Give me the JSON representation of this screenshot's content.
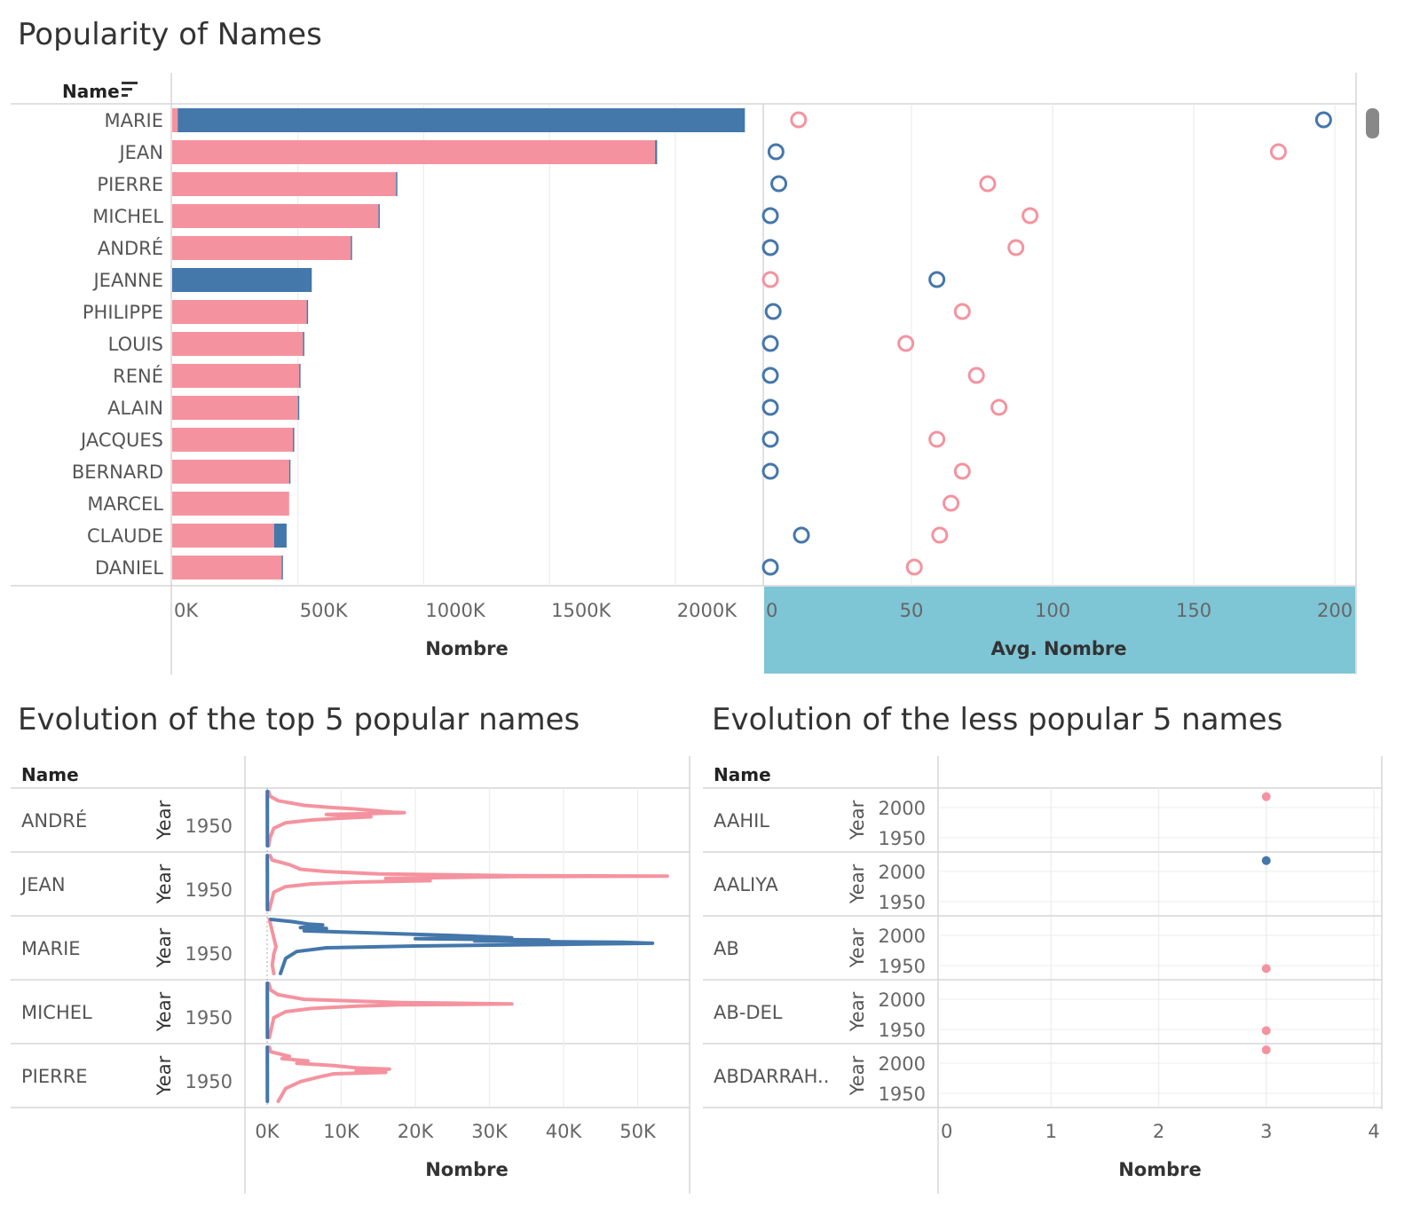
{
  "dashboard": {
    "title_top": "Popularity of Names",
    "title_bottom_left": "Evolution of the top 5 popular names",
    "title_bottom_right": "Evolution of the less popular 5 names"
  },
  "colors": {
    "female": "#4477aa",
    "male": "#f4939f",
    "highlight": "#7ec5d5",
    "grid": "#ececec"
  },
  "chart_data": [
    {
      "type": "bar",
      "header": "Name",
      "stacked": true,
      "categories": [
        "MARIE",
        "JEAN",
        "PIERRE",
        "MICHEL",
        "ANDRÉ",
        "JEANNE",
        "PHILIPPE",
        "LOUIS",
        "RENÉ",
        "ALAIN",
        "JACQUES",
        "BERNARD",
        "MARCEL",
        "CLAUDE",
        "DANIEL"
      ],
      "series": [
        {
          "color": "#f4939f",
          "values": [
            22000,
            1920000,
            890000,
            820000,
            710000,
            0,
            535000,
            520000,
            505000,
            500000,
            480000,
            465000,
            465000,
            405000,
            435000
          ]
        },
        {
          "color": "#4477aa",
          "values": [
            2255000,
            8000,
            3000,
            3000,
            3000,
            555000,
            3000,
            3000,
            3000,
            3000,
            3000,
            3000,
            0,
            50000,
            3000
          ]
        }
      ],
      "xlabel": "Nombre",
      "xticks": [
        "0K",
        "500K",
        "1000K",
        "1500K",
        "2000K"
      ],
      "xlim": [
        0,
        2350000
      ]
    },
    {
      "type": "scatter",
      "categories": [
        "MARIE",
        "JEAN",
        "PIERRE",
        "MICHEL",
        "ANDRÉ",
        "JEANNE",
        "PHILIPPE",
        "LOUIS",
        "RENÉ",
        "ALAIN",
        "JACQUES",
        "BERNARD",
        "MARCEL",
        "CLAUDE",
        "DANIEL"
      ],
      "series": [
        {
          "color": "#f4939f",
          "values": [
            10,
            180,
            77,
            92,
            87,
            0,
            68,
            48,
            73,
            81,
            59,
            68,
            64,
            60,
            51
          ]
        },
        {
          "color": "#4477aa",
          "values": [
            196,
            2,
            3,
            0,
            0,
            59,
            1,
            0,
            0,
            0,
            0,
            0,
            null,
            11,
            0
          ]
        }
      ],
      "xlabel": "Avg. Nombre",
      "xticks": [
        "0",
        "50",
        "100",
        "150",
        "200"
      ],
      "xlim": [
        0,
        205
      ],
      "highlighted_axis": true
    },
    {
      "type": "line",
      "header": "Name",
      "row_axis_label": "Year",
      "rows": [
        {
          "name": "ANDRÉ",
          "year_tick": "1950"
        },
        {
          "name": "JEAN",
          "year_tick": "1950"
        },
        {
          "name": "MARIE",
          "year_tick": "1950"
        },
        {
          "name": "MICHEL",
          "year_tick": "1950"
        },
        {
          "name": "PIERRE",
          "year_tick": "1950"
        }
      ],
      "xlabel": "Nombre",
      "xticks": [
        "0K",
        "10K",
        "20K",
        "30K",
        "40K",
        "50K"
      ],
      "xlim": [
        0,
        57000
      ],
      "ylim": [
        1900,
        2020
      ]
    },
    {
      "type": "scatter",
      "header": "Name",
      "row_axis_label": "Year",
      "rows": [
        {
          "name": "AAHIL",
          "year_ticks": [
            "2000",
            "1950"
          ],
          "points": [
            {
              "x": 3,
              "year": 2018,
              "color": "#f4939f"
            }
          ]
        },
        {
          "name": "AALIYA",
          "year_ticks": [
            "2000",
            "1950"
          ],
          "points": [
            {
              "x": 3,
              "year": 2018,
              "color": "#4477aa"
            }
          ]
        },
        {
          "name": "AB",
          "year_ticks": [
            "2000",
            "1950"
          ],
          "points": [
            {
              "x": 3,
              "year": 1945,
              "color": "#f4939f"
            }
          ]
        },
        {
          "name": "AB-DEL",
          "year_ticks": [
            "2000",
            "1950"
          ],
          "points": [
            {
              "x": 3,
              "year": 1948,
              "color": "#f4939f"
            }
          ]
        },
        {
          "name": "ABDARRAH..",
          "year_ticks": [
            "2000",
            "1950"
          ],
          "points": [
            {
              "x": 3,
              "year": 2022,
              "color": "#f4939f"
            }
          ]
        }
      ],
      "xlabel": "Nombre",
      "xticks": [
        "0",
        "1",
        "2",
        "3",
        "4"
      ],
      "xlim": [
        0,
        4
      ]
    }
  ]
}
